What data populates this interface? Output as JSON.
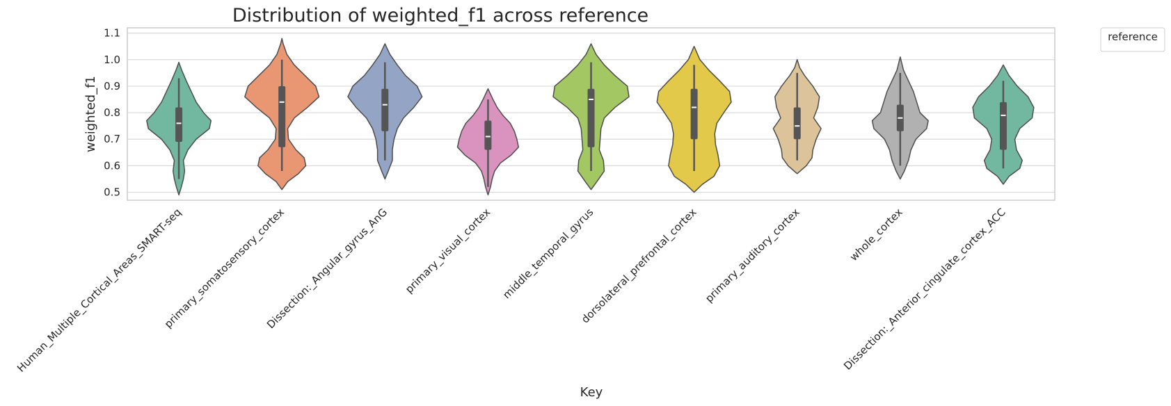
{
  "chart_data": {
    "type": "violin",
    "title": "Distribution of weighted_f1 across reference",
    "xlabel": "Key",
    "ylabel": "weighted_f1",
    "ylim": [
      0.47,
      1.12
    ],
    "yticks": [
      "0.5",
      "0.6",
      "0.7",
      "0.8",
      "0.9",
      "1.0",
      "1.1"
    ],
    "grid": true,
    "legend": {
      "title": "reference",
      "placement": "top-right outside"
    },
    "categories": [
      "Human_Multiple_Cortical_Areas_SMART-seq",
      "primary_somatosensory_cortex",
      "Dissection:_Angular_gyrus_AnG",
      "primary_visual_cortex",
      "middle_temporal_gyrus",
      "dorsolateral_prefrontal_cortex",
      "primary_auditory_cortex",
      "whole_cortex",
      "Dissection:_Anterior_cingulate_cortex_ACC"
    ],
    "colors": [
      "#72b8a0",
      "#e99673",
      "#93a4c4",
      "#da93bf",
      "#a2c763",
      "#e3c94a",
      "#dcc39a",
      "#b1b1b1",
      "#72b8a0"
    ],
    "box": [
      {
        "whisker_low": 0.55,
        "q1": 0.69,
        "median": 0.76,
        "q3": 0.82,
        "whisker_high": 0.93
      },
      {
        "whisker_low": 0.58,
        "q1": 0.67,
        "median": 0.84,
        "q3": 0.9,
        "whisker_high": 1.0
      },
      {
        "whisker_low": 0.62,
        "q1": 0.73,
        "median": 0.83,
        "q3": 0.89,
        "whisker_high": 0.99
      },
      {
        "whisker_low": 0.52,
        "q1": 0.66,
        "median": 0.71,
        "q3": 0.77,
        "whisker_high": 0.85
      },
      {
        "whisker_low": 0.58,
        "q1": 0.67,
        "median": 0.85,
        "q3": 0.89,
        "whisker_high": 0.99
      },
      {
        "whisker_low": 0.58,
        "q1": 0.7,
        "median": 0.82,
        "q3": 0.89,
        "whisker_high": 0.98
      },
      {
        "whisker_low": 0.62,
        "q1": 0.7,
        "median": 0.75,
        "q3": 0.82,
        "whisker_high": 0.95
      },
      {
        "whisker_low": 0.6,
        "q1": 0.73,
        "median": 0.78,
        "q3": 0.83,
        "whisker_high": 0.95
      },
      {
        "whisker_low": 0.59,
        "q1": 0.66,
        "median": 0.79,
        "q3": 0.84,
        "whisker_high": 0.92
      }
    ],
    "violins": [
      {
        "y": [
          0.49,
          0.52,
          0.55,
          0.58,
          0.62,
          0.66,
          0.7,
          0.74,
          0.77,
          0.8,
          0.84,
          0.88,
          0.92,
          0.96,
          0.99
        ],
        "density": [
          0.0,
          0.06,
          0.11,
          0.14,
          0.11,
          0.22,
          0.42,
          0.74,
          0.78,
          0.6,
          0.42,
          0.3,
          0.18,
          0.07,
          0.0
        ]
      },
      {
        "y": [
          0.51,
          0.54,
          0.57,
          0.6,
          0.63,
          0.66,
          0.7,
          0.74,
          0.78,
          0.82,
          0.86,
          0.9,
          0.94,
          0.98,
          1.02,
          1.06,
          1.08
        ],
        "density": [
          0.0,
          0.14,
          0.4,
          0.58,
          0.54,
          0.34,
          0.16,
          0.14,
          0.3,
          0.62,
          0.9,
          0.82,
          0.56,
          0.3,
          0.12,
          0.03,
          0.0
        ]
      },
      {
        "y": [
          0.55,
          0.58,
          0.62,
          0.66,
          0.7,
          0.74,
          0.78,
          0.82,
          0.86,
          0.9,
          0.94,
          0.98,
          1.02,
          1.06
        ],
        "density": [
          0.0,
          0.08,
          0.18,
          0.18,
          0.22,
          0.3,
          0.45,
          0.7,
          0.9,
          0.78,
          0.5,
          0.3,
          0.12,
          0.0
        ]
      },
      {
        "y": [
          0.49,
          0.52,
          0.55,
          0.58,
          0.61,
          0.64,
          0.67,
          0.7,
          0.73,
          0.76,
          0.79,
          0.82,
          0.85,
          0.89
        ],
        "density": [
          0.0,
          0.06,
          0.1,
          0.16,
          0.3,
          0.56,
          0.74,
          0.7,
          0.64,
          0.54,
          0.36,
          0.22,
          0.12,
          0.0
        ]
      },
      {
        "y": [
          0.51,
          0.54,
          0.58,
          0.62,
          0.66,
          0.7,
          0.74,
          0.78,
          0.82,
          0.86,
          0.9,
          0.94,
          0.98,
          1.02,
          1.06
        ],
        "density": [
          0.0,
          0.14,
          0.32,
          0.3,
          0.2,
          0.22,
          0.24,
          0.32,
          0.58,
          0.92,
          0.88,
          0.58,
          0.32,
          0.12,
          0.0
        ]
      },
      {
        "y": [
          0.5,
          0.53,
          0.56,
          0.6,
          0.64,
          0.68,
          0.72,
          0.76,
          0.8,
          0.84,
          0.88,
          0.92,
          0.96,
          1.0,
          1.05
        ],
        "density": [
          0.0,
          0.2,
          0.48,
          0.62,
          0.58,
          0.52,
          0.5,
          0.55,
          0.72,
          0.9,
          0.86,
          0.62,
          0.36,
          0.14,
          0.0
        ]
      },
      {
        "y": [
          0.57,
          0.6,
          0.63,
          0.66,
          0.7,
          0.74,
          0.78,
          0.82,
          0.86,
          0.9,
          0.94,
          0.97,
          1.0
        ],
        "density": [
          0.0,
          0.22,
          0.36,
          0.38,
          0.46,
          0.58,
          0.4,
          0.5,
          0.54,
          0.38,
          0.18,
          0.06,
          0.0
        ]
      },
      {
        "y": [
          0.55,
          0.58,
          0.62,
          0.66,
          0.7,
          0.74,
          0.77,
          0.8,
          0.84,
          0.88,
          0.92,
          0.96,
          1.01
        ],
        "density": [
          0.0,
          0.1,
          0.2,
          0.26,
          0.38,
          0.64,
          0.68,
          0.48,
          0.4,
          0.32,
          0.2,
          0.08,
          0.0
        ]
      },
      {
        "y": [
          0.53,
          0.56,
          0.59,
          0.62,
          0.66,
          0.7,
          0.74,
          0.78,
          0.82,
          0.86,
          0.9,
          0.94,
          0.98
        ],
        "density": [
          0.0,
          0.14,
          0.4,
          0.46,
          0.32,
          0.28,
          0.4,
          0.7,
          0.74,
          0.6,
          0.34,
          0.14,
          0.0
        ]
      }
    ]
  }
}
